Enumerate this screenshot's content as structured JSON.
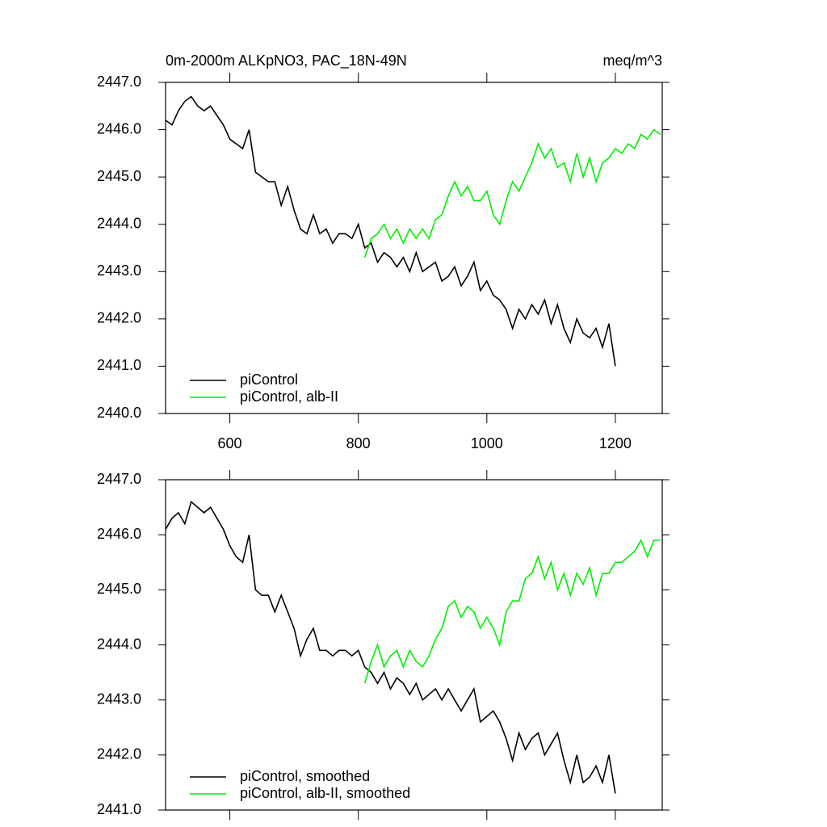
{
  "chart_data": [
    {
      "type": "line",
      "title": "0m-2000m ALKpNO3, PAC_18N-49N",
      "units": "meq/m^3",
      "x": [
        500,
        510,
        520,
        530,
        540,
        550,
        560,
        570,
        580,
        590,
        600,
        610,
        620,
        630,
        640,
        650,
        660,
        670,
        680,
        690,
        700,
        710,
        720,
        730,
        740,
        750,
        760,
        770,
        780,
        790,
        800,
        810,
        820,
        830,
        840,
        850,
        860,
        870,
        880,
        890,
        900,
        910,
        920,
        930,
        940,
        950,
        960,
        970,
        980,
        990,
        1000,
        1010,
        1020,
        1030,
        1040,
        1050,
        1060,
        1070,
        1080,
        1090,
        1100,
        1110,
        1120,
        1130,
        1140,
        1150,
        1160,
        1170,
        1180,
        1190,
        1200,
        1210,
        1220,
        1230,
        1240,
        1250,
        1260,
        1270
      ],
      "series": [
        {
          "name": "piControl",
          "color": "#000000",
          "values": [
            2446.2,
            2446.1,
            2446.4,
            2446.6,
            2446.7,
            2446.5,
            2446.4,
            2446.5,
            2446.3,
            2446.1,
            2445.8,
            2445.7,
            2445.6,
            2446.0,
            2445.1,
            2445.0,
            2444.9,
            2444.9,
            2444.4,
            2444.8,
            2444.3,
            2443.9,
            2443.8,
            2444.2,
            2443.8,
            2443.9,
            2443.6,
            2443.8,
            2443.8,
            2443.7,
            2444.0,
            2443.5,
            2443.6,
            2443.2,
            2443.4,
            2443.3,
            2443.1,
            2443.3,
            2443.0,
            2443.4,
            2443.0,
            2443.1,
            2443.2,
            2442.8,
            2442.9,
            2443.1,
            2442.7,
            2442.9,
            2443.2,
            2442.6,
            2442.8,
            2442.5,
            2442.4,
            2442.2,
            2441.8,
            2442.2,
            2442.0,
            2442.3,
            2442.1,
            2442.4,
            2441.9,
            2442.3,
            2441.8,
            2441.5,
            2442.0,
            2441.7,
            2441.6,
            2441.8,
            2441.4,
            2441.9,
            2441.0,
            null,
            null,
            null,
            null,
            null,
            null,
            null
          ]
        },
        {
          "name": "piControl, alb-II",
          "color": "#00ee00",
          "values": [
            null,
            null,
            null,
            null,
            null,
            null,
            null,
            null,
            null,
            null,
            null,
            null,
            null,
            null,
            null,
            null,
            null,
            null,
            null,
            null,
            null,
            null,
            null,
            null,
            null,
            null,
            null,
            null,
            null,
            null,
            null,
            2443.3,
            2443.7,
            2443.8,
            2444.0,
            2443.7,
            2443.9,
            2443.6,
            2443.9,
            2443.7,
            2443.9,
            2443.7,
            2444.1,
            2444.2,
            2444.6,
            2444.9,
            2444.6,
            2444.8,
            2444.5,
            2444.5,
            2444.7,
            2444.2,
            2444.0,
            2444.5,
            2444.9,
            2444.7,
            2445.0,
            2445.3,
            2445.7,
            2445.4,
            2445.6,
            2445.2,
            2445.3,
            2444.9,
            2445.5,
            2445.0,
            2445.4,
            2444.9,
            2445.3,
            2445.4,
            2445.6,
            2445.5,
            2445.7,
            2445.6,
            2445.9,
            2445.8,
            2446.0,
            2445.9
          ]
        }
      ],
      "xlim": [
        500,
        1273
      ],
      "xticks": [
        600,
        800,
        1000,
        1200
      ],
      "xtick_labels": true,
      "ylim": [
        2440,
        2447
      ],
      "yticks": [
        {
          "value": 2440,
          "label": "2440.0"
        },
        {
          "value": 2441,
          "label": "2441.0"
        },
        {
          "value": 2442,
          "label": "2442.0"
        },
        {
          "value": 2443,
          "label": "2443.0"
        },
        {
          "value": 2444,
          "label": "2444.0"
        },
        {
          "value": 2445,
          "label": "2445.0"
        },
        {
          "value": 2446,
          "label": "2446.0"
        },
        {
          "value": 2447,
          "label": "2447.0"
        }
      ],
      "legend": "lower left"
    },
    {
      "type": "line",
      "x": [
        500,
        510,
        520,
        530,
        540,
        550,
        560,
        570,
        580,
        590,
        600,
        610,
        620,
        630,
        640,
        650,
        660,
        670,
        680,
        690,
        700,
        710,
        720,
        730,
        740,
        750,
        760,
        770,
        780,
        790,
        800,
        810,
        820,
        830,
        840,
        850,
        860,
        870,
        880,
        890,
        900,
        910,
        920,
        930,
        940,
        950,
        960,
        970,
        980,
        990,
        1000,
        1010,
        1020,
        1030,
        1040,
        1050,
        1060,
        1070,
        1080,
        1090,
        1100,
        1110,
        1120,
        1130,
        1140,
        1150,
        1160,
        1170,
        1180,
        1190,
        1200,
        1210,
        1220,
        1230,
        1240,
        1250,
        1260,
        1270
      ],
      "series": [
        {
          "name": "piControl, smoothed",
          "color": "#000000",
          "values": [
            2446.1,
            2446.3,
            2446.4,
            2446.2,
            2446.6,
            2446.5,
            2446.4,
            2446.5,
            2446.3,
            2446.1,
            2445.8,
            2445.6,
            2445.5,
            2446.0,
            2445.0,
            2444.9,
            2444.9,
            2444.6,
            2444.9,
            2444.6,
            2444.3,
            2443.8,
            2444.1,
            2444.3,
            2443.9,
            2443.9,
            2443.8,
            2443.9,
            2443.9,
            2443.8,
            2443.9,
            2443.6,
            2443.5,
            2443.3,
            2443.5,
            2443.2,
            2443.4,
            2443.3,
            2443.1,
            2443.3,
            2443.0,
            2443.1,
            2443.2,
            2443.0,
            2443.2,
            2443.0,
            2442.8,
            2443.0,
            2443.2,
            2442.6,
            2442.7,
            2442.8,
            2442.6,
            2442.3,
            2441.9,
            2442.4,
            2442.1,
            2442.3,
            2442.4,
            2442.0,
            2442.2,
            2442.4,
            2441.9,
            2441.5,
            2442.0,
            2441.5,
            2441.6,
            2441.8,
            2441.5,
            2442.0,
            2441.3,
            null,
            null,
            null,
            null,
            null,
            null,
            null
          ]
        },
        {
          "name": "piControl, alb-II, smoothed",
          "color": "#00ee00",
          "values": [
            null,
            null,
            null,
            null,
            null,
            null,
            null,
            null,
            null,
            null,
            null,
            null,
            null,
            null,
            null,
            null,
            null,
            null,
            null,
            null,
            null,
            null,
            null,
            null,
            null,
            null,
            null,
            null,
            null,
            null,
            null,
            2443.3,
            2443.7,
            2444.0,
            2443.6,
            2443.8,
            2443.9,
            2443.6,
            2443.9,
            2443.7,
            2443.6,
            2443.8,
            2444.1,
            2444.3,
            2444.7,
            2444.8,
            2444.5,
            2444.7,
            2444.6,
            2444.3,
            2444.5,
            2444.3,
            2444.0,
            2444.6,
            2444.8,
            2444.8,
            2445.2,
            2445.3,
            2445.6,
            2445.2,
            2445.5,
            2445.0,
            2445.3,
            2444.9,
            2445.3,
            2445.1,
            2445.4,
            2444.9,
            2445.3,
            2445.3,
            2445.5,
            2445.5,
            2445.6,
            2445.7,
            2445.9,
            2445.6,
            2445.9,
            2445.9
          ]
        }
      ],
      "xlim": [
        500,
        1273
      ],
      "xticks": [
        600,
        800,
        1000,
        1200
      ],
      "xtick_labels": false,
      "ylim": [
        2441,
        2447
      ],
      "yticks": [
        {
          "value": 2441,
          "label": "2441.0"
        },
        {
          "value": 2442,
          "label": "2442.0"
        },
        {
          "value": 2443,
          "label": "2443.0"
        },
        {
          "value": 2444,
          "label": "2444.0"
        },
        {
          "value": 2445,
          "label": "2445.0"
        },
        {
          "value": 2446,
          "label": "2446.0"
        },
        {
          "value": 2447,
          "label": "2447.0"
        }
      ],
      "legend": "lower left"
    }
  ]
}
